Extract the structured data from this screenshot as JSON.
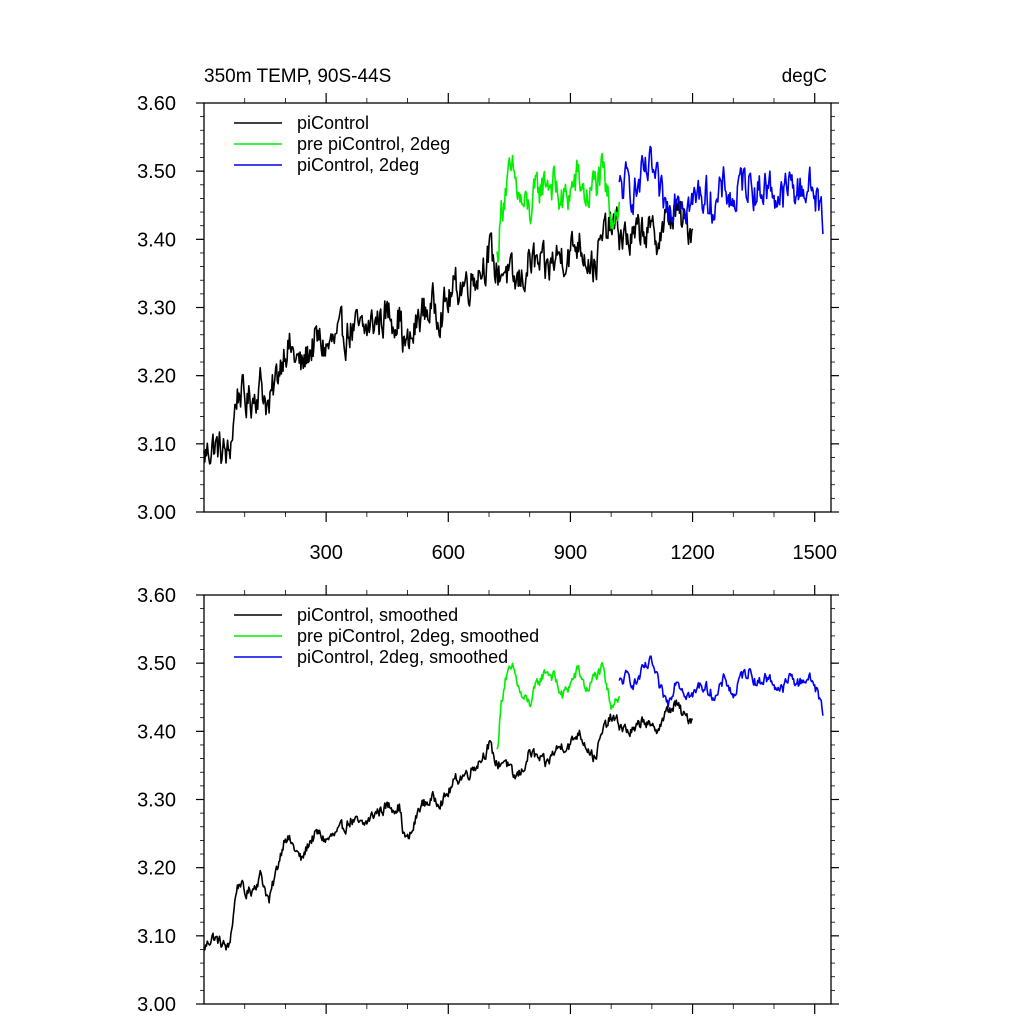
{
  "chart_data": [
    {
      "type": "line",
      "title": "350m TEMP, 90S-44S",
      "units": "degC",
      "xlabel": "",
      "ylabel": "",
      "xlim": [
        0,
        1540
      ],
      "ylim": [
        3.0,
        3.6
      ],
      "xticks": [
        300,
        600,
        900,
        1200,
        1500
      ],
      "yticks": [
        3.0,
        3.1,
        3.2,
        3.3,
        3.4,
        3.5,
        3.6
      ],
      "ytick_labels": [
        "3.00",
        "3.10",
        "3.20",
        "3.30",
        "3.40",
        "3.50",
        "3.60"
      ],
      "show_x_tick_labels": true,
      "legend_position": "top-left",
      "noise": 0.022,
      "series": [
        {
          "name": "piControl",
          "color": "#000000",
          "x": [
            0,
            20,
            40,
            60,
            70,
            80,
            90,
            100,
            120,
            140,
            160,
            180,
            200,
            220,
            240,
            260,
            280,
            300,
            330,
            360,
            390,
            420,
            450,
            480,
            490,
            500,
            510,
            530,
            560,
            590,
            620,
            650,
            680,
            700,
            720,
            740,
            760,
            780,
            800,
            820,
            840,
            860,
            880,
            900,
            920,
            940,
            960,
            980,
            1000,
            1020,
            1040,
            1060,
            1080,
            1100,
            1120,
            1140,
            1160,
            1180,
            1200
          ],
          "values": [
            3.08,
            3.1,
            3.09,
            3.08,
            3.12,
            3.17,
            3.18,
            3.16,
            3.17,
            3.19,
            3.15,
            3.2,
            3.25,
            3.23,
            3.21,
            3.24,
            3.25,
            3.24,
            3.25,
            3.27,
            3.26,
            3.28,
            3.29,
            3.29,
            3.25,
            3.24,
            3.25,
            3.29,
            3.3,
            3.3,
            3.33,
            3.34,
            3.36,
            3.38,
            3.35,
            3.36,
            3.33,
            3.34,
            3.37,
            3.36,
            3.35,
            3.37,
            3.38,
            3.38,
            3.4,
            3.38,
            3.36,
            3.4,
            3.42,
            3.41,
            3.4,
            3.4,
            3.42,
            3.4,
            3.41,
            3.43,
            3.44,
            3.42,
            3.42
          ]
        },
        {
          "name": "pre piControl, 2deg",
          "color": "#00ee00",
          "x": [
            720,
            730,
            740,
            760,
            780,
            800,
            820,
            840,
            860,
            880,
            900,
            920,
            940,
            960,
            980,
            990,
            1000,
            1010,
            1020
          ],
          "values": [
            3.37,
            3.44,
            3.48,
            3.49,
            3.45,
            3.44,
            3.47,
            3.49,
            3.48,
            3.45,
            3.47,
            3.49,
            3.46,
            3.48,
            3.49,
            3.46,
            3.44,
            3.45,
            3.45
          ]
        },
        {
          "name": "piControl, 2deg",
          "color": "#0000ee",
          "x": [
            1020,
            1040,
            1060,
            1080,
            1100,
            1120,
            1140,
            1160,
            1180,
            1200,
            1220,
            1240,
            1260,
            1280,
            1300,
            1320,
            1340,
            1360,
            1380,
            1400,
            1420,
            1440,
            1460,
            1480,
            1500,
            1520
          ],
          "values": [
            3.47,
            3.48,
            3.47,
            3.49,
            3.5,
            3.46,
            3.44,
            3.48,
            3.46,
            3.45,
            3.47,
            3.46,
            3.45,
            3.48,
            3.45,
            3.48,
            3.49,
            3.47,
            3.48,
            3.47,
            3.46,
            3.48,
            3.47,
            3.48,
            3.47,
            3.43
          ]
        }
      ]
    },
    {
      "type": "line",
      "title": "",
      "units": "",
      "xlabel": "",
      "ylabel": "",
      "xlim": [
        0,
        1540
      ],
      "ylim": [
        3.0,
        3.6
      ],
      "xticks": [
        300,
        600,
        900,
        1200,
        1500
      ],
      "yticks": [
        3.0,
        3.1,
        3.2,
        3.3,
        3.4,
        3.5,
        3.6
      ],
      "ytick_labels": [
        "3.00",
        "3.10",
        "3.20",
        "3.30",
        "3.40",
        "3.50",
        "3.60"
      ],
      "show_x_tick_labels": false,
      "legend_position": "top-left",
      "noise": 0.007,
      "series": [
        {
          "name": "piControl, smoothed",
          "color": "#000000",
          "x": [
            0,
            20,
            40,
            60,
            70,
            80,
            90,
            100,
            120,
            140,
            160,
            180,
            200,
            220,
            240,
            260,
            280,
            300,
            330,
            360,
            390,
            420,
            450,
            480,
            490,
            500,
            510,
            530,
            560,
            590,
            620,
            650,
            680,
            700,
            720,
            740,
            760,
            780,
            800,
            820,
            840,
            860,
            880,
            900,
            920,
            940,
            960,
            980,
            1000,
            1020,
            1040,
            1060,
            1080,
            1100,
            1120,
            1140,
            1160,
            1180,
            1200
          ],
          "values": [
            3.08,
            3.1,
            3.09,
            3.08,
            3.12,
            3.17,
            3.18,
            3.16,
            3.17,
            3.19,
            3.15,
            3.2,
            3.25,
            3.23,
            3.21,
            3.24,
            3.25,
            3.24,
            3.25,
            3.27,
            3.26,
            3.28,
            3.29,
            3.29,
            3.25,
            3.24,
            3.25,
            3.29,
            3.3,
            3.3,
            3.33,
            3.34,
            3.36,
            3.38,
            3.35,
            3.36,
            3.33,
            3.34,
            3.37,
            3.36,
            3.35,
            3.37,
            3.38,
            3.38,
            3.4,
            3.38,
            3.36,
            3.4,
            3.42,
            3.41,
            3.4,
            3.4,
            3.42,
            3.4,
            3.41,
            3.43,
            3.44,
            3.42,
            3.42
          ]
        },
        {
          "name": "pre piControl, 2deg, smoothed",
          "color": "#00ee00",
          "x": [
            720,
            730,
            740,
            760,
            780,
            800,
            820,
            840,
            860,
            880,
            900,
            920,
            940,
            960,
            980,
            990,
            1000,
            1010,
            1020
          ],
          "values": [
            3.37,
            3.44,
            3.48,
            3.49,
            3.45,
            3.44,
            3.47,
            3.49,
            3.48,
            3.45,
            3.47,
            3.49,
            3.46,
            3.48,
            3.49,
            3.46,
            3.44,
            3.45,
            3.45
          ]
        },
        {
          "name": "piControl, 2deg, smoothed",
          "color": "#0000ee",
          "x": [
            1020,
            1040,
            1060,
            1080,
            1100,
            1120,
            1140,
            1160,
            1180,
            1200,
            1220,
            1240,
            1260,
            1280,
            1300,
            1320,
            1340,
            1360,
            1380,
            1400,
            1420,
            1440,
            1460,
            1480,
            1500,
            1520
          ],
          "values": [
            3.47,
            3.48,
            3.47,
            3.49,
            3.5,
            3.46,
            3.44,
            3.48,
            3.46,
            3.45,
            3.47,
            3.46,
            3.45,
            3.48,
            3.45,
            3.48,
            3.49,
            3.47,
            3.48,
            3.47,
            3.46,
            3.48,
            3.47,
            3.48,
            3.47,
            3.43
          ]
        }
      ]
    }
  ]
}
